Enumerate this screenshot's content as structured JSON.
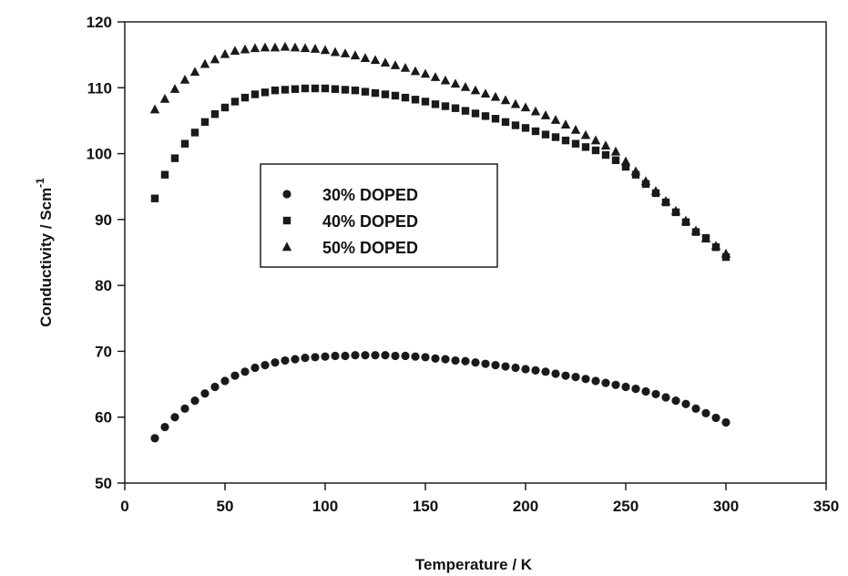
{
  "chart_data": {
    "type": "scatter",
    "title": "",
    "xlabel": "Temperature  / K",
    "ylabel": "Conductivity  /  Scm",
    "ylabel_sup": "-1",
    "xlim": [
      0,
      350
    ],
    "ylim": [
      50,
      120
    ],
    "xticks": [
      "0",
      "50",
      "100",
      "150",
      "200",
      "250",
      "300",
      "350"
    ],
    "yticks": [
      "50",
      "60",
      "70",
      "80",
      "90",
      "100",
      "110",
      "120"
    ],
    "grid": false,
    "legend_position": "center-left",
    "series": [
      {
        "name": "30% DOPED",
        "marker": "circle",
        "x": [
          15,
          20,
          25,
          30,
          35,
          40,
          45,
          50,
          55,
          60,
          65,
          70,
          75,
          80,
          85,
          90,
          95,
          100,
          105,
          110,
          115,
          120,
          125,
          130,
          135,
          140,
          145,
          150,
          155,
          160,
          165,
          170,
          175,
          180,
          185,
          190,
          195,
          200,
          205,
          210,
          215,
          220,
          225,
          230,
          235,
          240,
          245,
          250,
          255,
          260,
          265,
          270,
          275,
          280,
          285,
          290,
          295,
          300
        ],
        "y": [
          56.8,
          58.5,
          60.0,
          61.3,
          62.5,
          63.6,
          64.6,
          65.5,
          66.3,
          66.9,
          67.5,
          67.9,
          68.3,
          68.6,
          68.8,
          69.0,
          69.1,
          69.2,
          69.3,
          69.3,
          69.4,
          69.4,
          69.4,
          69.4,
          69.3,
          69.3,
          69.2,
          69.1,
          68.9,
          68.8,
          68.6,
          68.5,
          68.3,
          68.1,
          67.9,
          67.7,
          67.5,
          67.3,
          67.1,
          66.9,
          66.6,
          66.3,
          66.1,
          65.8,
          65.5,
          65.2,
          64.9,
          64.6,
          64.3,
          63.9,
          63.5,
          63.0,
          62.5,
          62.0,
          61.3,
          60.6,
          59.9,
          59.2
        ]
      },
      {
        "name": "40% DOPED",
        "marker": "square",
        "x": [
          15,
          20,
          25,
          30,
          35,
          40,
          45,
          50,
          55,
          60,
          65,
          70,
          75,
          80,
          85,
          90,
          95,
          100,
          105,
          110,
          115,
          120,
          125,
          130,
          135,
          140,
          145,
          150,
          155,
          160,
          165,
          170,
          175,
          180,
          185,
          190,
          195,
          200,
          205,
          210,
          215,
          220,
          225,
          230,
          235,
          240,
          245,
          250,
          255,
          260,
          265,
          270,
          275,
          280,
          285,
          290,
          295,
          300
        ],
        "y": [
          93.2,
          96.8,
          99.3,
          101.5,
          103.2,
          104.8,
          106.0,
          107.0,
          107.9,
          108.5,
          109.0,
          109.3,
          109.6,
          109.7,
          109.8,
          109.9,
          109.9,
          109.9,
          109.8,
          109.7,
          109.6,
          109.4,
          109.2,
          109.0,
          108.8,
          108.5,
          108.2,
          107.9,
          107.5,
          107.2,
          106.9,
          106.5,
          106.1,
          105.7,
          105.3,
          104.8,
          104.3,
          103.9,
          103.4,
          102.9,
          102.5,
          102.0,
          101.5,
          101.0,
          100.5,
          99.8,
          99.0,
          98.0,
          96.8,
          95.4,
          94.0,
          92.6,
          91.1,
          89.6,
          88.1,
          87.2,
          85.8,
          84.3
        ]
      },
      {
        "name": "50% DOPED",
        "marker": "triangle",
        "x": [
          15,
          20,
          25,
          30,
          35,
          40,
          45,
          50,
          55,
          60,
          65,
          70,
          75,
          80,
          85,
          90,
          95,
          100,
          105,
          110,
          115,
          120,
          125,
          130,
          135,
          140,
          145,
          150,
          155,
          160,
          165,
          170,
          175,
          180,
          185,
          190,
          195,
          200,
          205,
          210,
          215,
          220,
          225,
          230,
          235,
          240,
          245,
          250,
          255,
          260,
          265,
          270,
          275,
          280,
          285,
          290,
          295,
          300
        ],
        "y": [
          106.7,
          108.3,
          109.8,
          111.2,
          112.4,
          113.6,
          114.3,
          115.1,
          115.6,
          115.8,
          116.0,
          116.1,
          116.1,
          116.2,
          116.1,
          116.0,
          115.9,
          115.7,
          115.4,
          115.2,
          114.9,
          114.5,
          114.2,
          113.8,
          113.4,
          113.0,
          112.5,
          112.1,
          111.6,
          111.1,
          110.6,
          110.1,
          109.6,
          109.1,
          108.6,
          108.1,
          107.5,
          107.0,
          106.4,
          105.8,
          105.1,
          104.4,
          103.6,
          102.8,
          102.0,
          101.2,
          100.3,
          98.8,
          97.3,
          95.8,
          94.3,
          92.8,
          91.3,
          89.8,
          88.3,
          87.1,
          86.0,
          84.8
        ]
      }
    ]
  }
}
